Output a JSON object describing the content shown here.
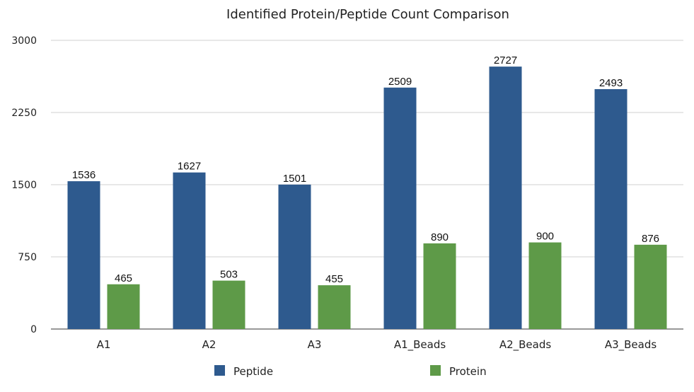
{
  "chart_data": {
    "type": "bar",
    "title": "Identified Protein/Peptide Count Comparison",
    "xlabel": "",
    "ylabel": "",
    "categories": [
      "A1",
      "A2",
      "A3",
      "A1_Beads",
      "A2_Beads",
      "A3_Beads"
    ],
    "series": [
      {
        "name": "Peptide",
        "color": "#2e5a8e",
        "values": [
          1536,
          1627,
          1501,
          2509,
          2727,
          2493
        ]
      },
      {
        "name": "Protein",
        "color": "#5e9a48",
        "values": [
          465,
          503,
          455,
          890,
          900,
          876
        ]
      }
    ],
    "ylim": [
      0,
      3000
    ],
    "yticks": [
      0,
      750,
      1500,
      2250,
      3000
    ],
    "grid": true,
    "legend": "bottom",
    "data_labels": true
  }
}
